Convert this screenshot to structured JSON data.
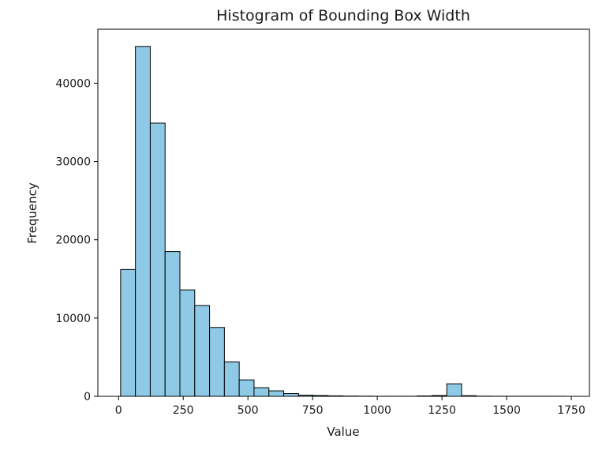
{
  "chart_data": {
    "type": "bar",
    "title": "Histogram of Bounding Box Width",
    "xlabel": "Value",
    "ylabel": "Frequency",
    "xlim": [
      -80,
      1820
    ],
    "ylim": [
      0,
      46900
    ],
    "xticks": [
      0,
      250,
      500,
      750,
      1000,
      1250,
      1500,
      1750
    ],
    "xtick_labels": [
      "0",
      "250",
      "500",
      "750",
      "1000",
      "1250",
      "1500",
      "1750"
    ],
    "yticks": [
      0,
      10000,
      20000,
      30000,
      40000
    ],
    "ytick_labels": [
      "0",
      "10000",
      "20000",
      "30000",
      "40000"
    ],
    "bin_start": 8,
    "bin_width": 57.3,
    "values": [
      16200,
      44700,
      34900,
      18500,
      13600,
      11600,
      8800,
      4400,
      2100,
      1100,
      700,
      350,
      150,
      100,
      60,
      30,
      20,
      10,
      10,
      10,
      50,
      100,
      1600,
      80,
      20,
      10,
      10,
      10,
      10,
      10
    ],
    "grid": false,
    "legend": "none",
    "bar_color": "#8ecae6",
    "edge_color": "#000000"
  }
}
